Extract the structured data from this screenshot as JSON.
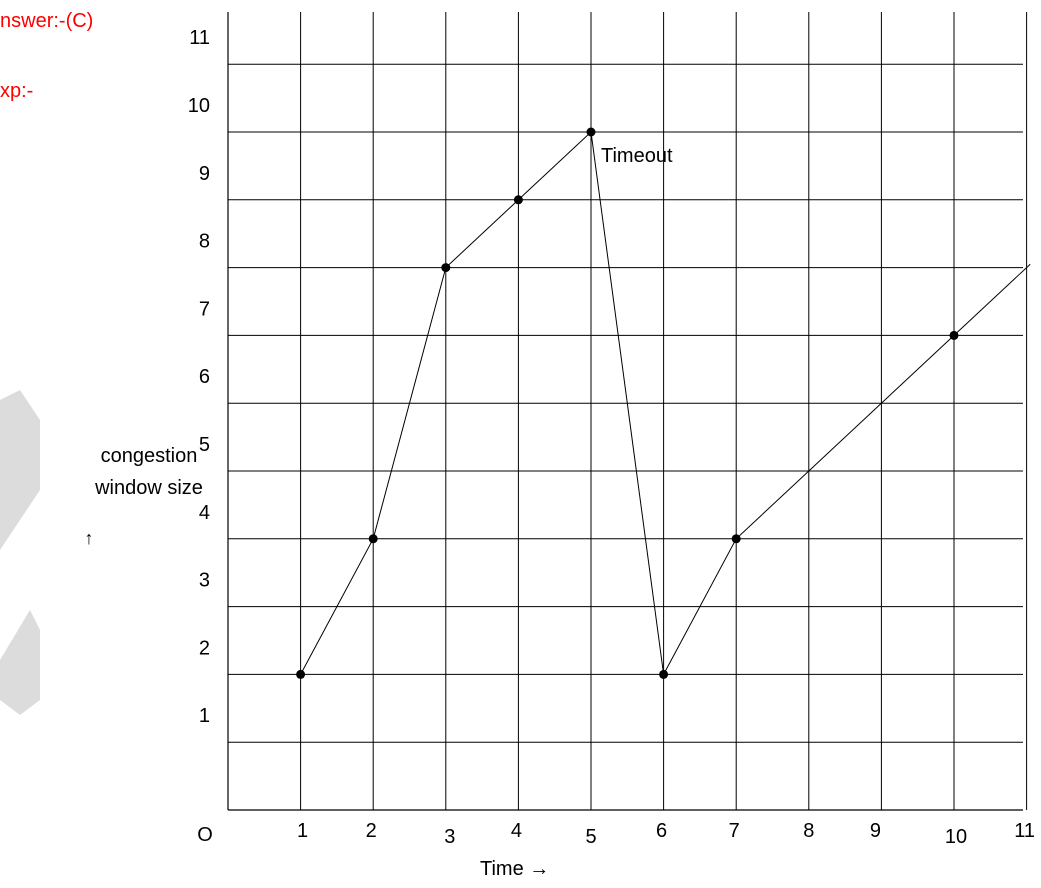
{
  "header": {
    "answer_text": "nswer:-(C)",
    "exp_text": "xp:-"
  },
  "colors": {
    "answer_red": "#ff0000",
    "grid": "#000000",
    "watermark": "#d9d9d9"
  },
  "chart_data": {
    "type": "line",
    "ylabel": "congestion window size",
    "ylabel_arrow": "↑",
    "xlabel": "Time →",
    "origin_label": "O",
    "xlim": [
      0,
      11
    ],
    "ylim": [
      0,
      11
    ],
    "grid": true,
    "x_ticks": [
      "1",
      "2",
      "3",
      "4",
      "5",
      "6",
      "7",
      "8",
      "9",
      "10",
      "11"
    ],
    "y_ticks": [
      "1",
      "2",
      "3",
      "4",
      "5",
      "6",
      "7",
      "8",
      "9",
      "10",
      "11"
    ],
    "series": [
      {
        "points": [
          {
            "x": 1,
            "y": 2
          },
          {
            "x": 2,
            "y": 4
          },
          {
            "x": 3,
            "y": 8
          },
          {
            "x": 4,
            "y": 9
          },
          {
            "x": 5,
            "y": 10
          },
          {
            "x": 6,
            "y": 2
          },
          {
            "x": 7,
            "y": 4
          },
          {
            "x": 10,
            "y": 7
          }
        ],
        "line_extends_to": {
          "x": 11.05,
          "y": 8.05
        }
      }
    ],
    "annotations": [
      {
        "text": "Timeout",
        "x": 5,
        "y": 10
      }
    ]
  }
}
